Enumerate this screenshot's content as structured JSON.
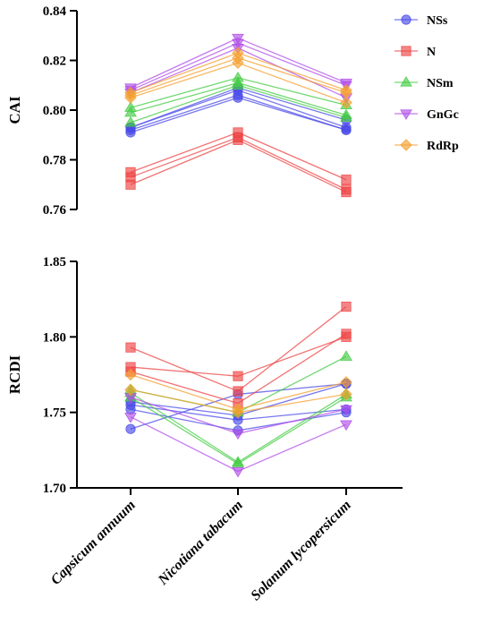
{
  "categories": [
    "Capsicum annuum",
    "Nicotiana tabacum",
    "Solanum lycopersicum"
  ],
  "legend": [
    {
      "name": "NSs",
      "color": "#4a4ae8",
      "marker": "circle"
    },
    {
      "name": "N",
      "color": "#ee4444",
      "marker": "square"
    },
    {
      "name": "NSm",
      "color": "#44cc44",
      "marker": "triangle-up"
    },
    {
      "name": "GnGc",
      "color": "#b04ee8",
      "marker": "triangle-down"
    },
    {
      "name": "RdRp",
      "color": "#f5a030",
      "marker": "diamond"
    }
  ],
  "chart_data": [
    {
      "type": "line",
      "ylabel": "CAI",
      "ylim": [
        0.76,
        0.84
      ],
      "yticks": [
        "0.76",
        "0.78",
        "0.80",
        "0.82",
        "0.84"
      ],
      "series": [
        {
          "name": "NSs",
          "lines": [
            [
              0.791,
              0.805,
              0.792
            ],
            [
              0.792,
              0.806,
              0.792
            ],
            [
              0.793,
              0.808,
              0.793
            ],
            [
              0.793,
              0.809,
              0.796
            ]
          ]
        },
        {
          "name": "N",
          "lines": [
            [
              0.77,
              0.788,
              0.767
            ],
            [
              0.773,
              0.789,
              0.768
            ],
            [
              0.775,
              0.791,
              0.772
            ]
          ]
        },
        {
          "name": "NSm",
          "lines": [
            [
              0.795,
              0.81,
              0.797
            ],
            [
              0.799,
              0.811,
              0.798
            ],
            [
              0.801,
              0.813,
              0.802
            ]
          ]
        },
        {
          "name": "GnGc",
          "lines": [
            [
              0.807,
              0.825,
              0.805
            ],
            [
              0.808,
              0.827,
              0.81
            ],
            [
              0.809,
              0.829,
              0.811
            ]
          ]
        },
        {
          "name": "RdRp",
          "lines": [
            [
              0.805,
              0.819,
              0.803
            ],
            [
              0.806,
              0.821,
              0.807
            ],
            [
              0.807,
              0.823,
              0.808
            ]
          ]
        }
      ]
    },
    {
      "type": "line",
      "ylabel": "RCDI",
      "ylim": [
        1.7,
        1.85
      ],
      "yticks": [
        "1.70",
        "1.75",
        "1.80",
        "1.85"
      ],
      "series": [
        {
          "name": "NSs",
          "lines": [
            [
              1.739,
              1.762,
              1.769
            ],
            [
              1.752,
              1.738,
              1.75
            ],
            [
              1.755,
              1.745,
              1.752
            ],
            [
              1.757,
              1.748,
              1.769
            ]
          ]
        },
        {
          "name": "N",
          "lines": [
            [
              1.793,
              1.764,
              1.82
            ],
            [
              1.78,
              1.774,
              1.8
            ],
            [
              1.777,
              1.756,
              1.802
            ]
          ]
        },
        {
          "name": "NSm",
          "lines": [
            [
              1.765,
              1.75,
              1.787
            ],
            [
              1.763,
              1.717,
              1.762
            ],
            [
              1.76,
              1.716,
              1.76
            ]
          ]
        },
        {
          "name": "GnGc",
          "lines": [
            [
              1.747,
              1.711,
              1.742
            ],
            [
              1.76,
              1.736,
              1.752
            ]
          ]
        },
        {
          "name": "RdRp",
          "lines": [
            [
              1.775,
              1.752,
              1.77
            ],
            [
              1.765,
              1.75,
              1.762
            ]
          ]
        }
      ]
    }
  ]
}
